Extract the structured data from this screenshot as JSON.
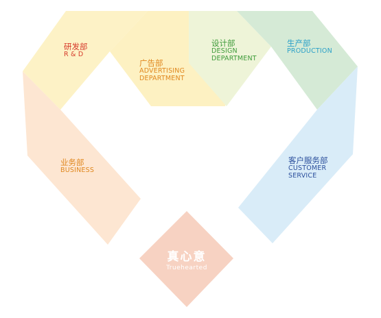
{
  "colors": {
    "rd": "#d63a2a",
    "advertising": "#e0871d",
    "design": "#3e9b3a",
    "production": "#2aa0c8",
    "service": "#2b4f9c",
    "business": "#e0871d"
  },
  "departments": {
    "rd": {
      "cn": "研发部",
      "en": "R & D"
    },
    "advertising": {
      "cn": "广告部",
      "en1": "ADVERTISING",
      "en2": "DEPARTMENT"
    },
    "design": {
      "cn": "设计部",
      "en1": "DESIGN",
      "en2": "DEPARTMENT"
    },
    "production": {
      "cn": "生产部",
      "en": "PRODUCTION"
    },
    "service": {
      "cn": "客户服务部",
      "en1": "CUSTOMER",
      "en2": "SERVICE"
    },
    "business": {
      "cn": "业务部",
      "en": "BUSINESS"
    }
  },
  "center": {
    "cn": "真心意",
    "en": "Truehearted"
  }
}
